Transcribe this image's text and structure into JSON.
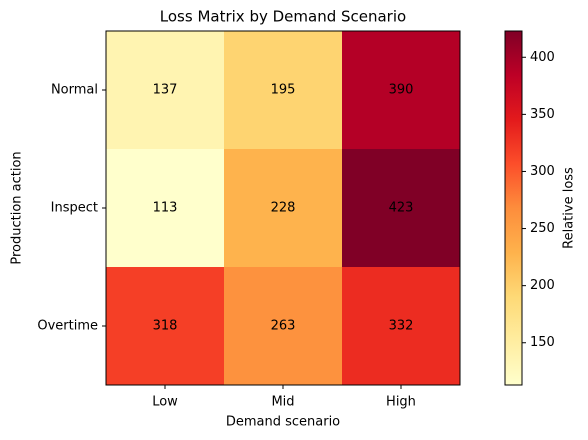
{
  "chart_data": {
    "type": "heatmap",
    "title": "Loss Matrix by Demand Scenario",
    "x_label": "Demand scenario",
    "y_label": "Production action",
    "x_categories": [
      "Low",
      "Mid",
      "High"
    ],
    "y_categories": [
      "Normal",
      "Inspect",
      "Overtime"
    ],
    "z": [
      [
        137,
        195,
        390
      ],
      [
        113,
        228,
        423
      ],
      [
        318,
        263,
        332
      ]
    ],
    "colorscale": [
      "#ffffcc",
      "#ffeda0",
      "#fed976",
      "#feb24c",
      "#fd8d3c",
      "#fc4e2a",
      "#e31a1c",
      "#bd0026",
      "#800026"
    ],
    "colorbar": {
      "label": "Relative loss",
      "lim": [
        113,
        423
      ],
      "ticks": [
        150,
        200,
        250,
        300,
        350,
        400
      ]
    }
  }
}
